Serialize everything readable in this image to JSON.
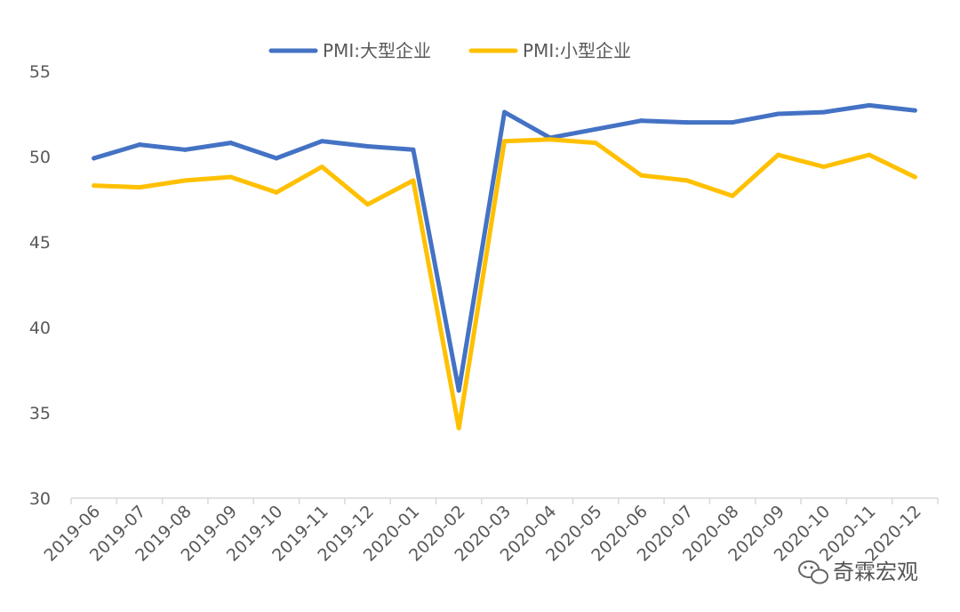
{
  "chart_data": {
    "type": "line",
    "title": "",
    "xlabel": "",
    "ylabel": "",
    "categories": [
      "2019-06",
      "2019-07",
      "2019-08",
      "2019-09",
      "2019-10",
      "2019-11",
      "2019-12",
      "2020-01",
      "2020-02",
      "2020-03",
      "2020-04",
      "2020-05",
      "2020-06",
      "2020-07",
      "2020-08",
      "2020-09",
      "2020-10",
      "2020-11",
      "2020-12"
    ],
    "yticks": [
      30,
      35,
      40,
      45,
      50,
      55
    ],
    "ylim": [
      30,
      55
    ],
    "grid": false,
    "legend_position": "top-center",
    "series": [
      {
        "name": "PMI:大型企业",
        "color": "#4472C4",
        "values": [
          49.9,
          50.7,
          50.4,
          50.8,
          49.9,
          50.9,
          50.6,
          50.4,
          36.3,
          52.6,
          51.1,
          51.6,
          52.1,
          52.0,
          52.0,
          52.5,
          52.6,
          53.0,
          52.7
        ]
      },
      {
        "name": "PMI:小型企业",
        "color": "#FFC000",
        "values": [
          48.3,
          48.2,
          48.6,
          48.8,
          47.9,
          49.4,
          47.2,
          48.6,
          34.1,
          50.9,
          51.0,
          50.8,
          48.9,
          48.6,
          47.7,
          50.1,
          49.4,
          50.1,
          48.8
        ]
      }
    ]
  },
  "watermark": {
    "icon": "wechat-icon",
    "text": "奇霖宏观"
  }
}
